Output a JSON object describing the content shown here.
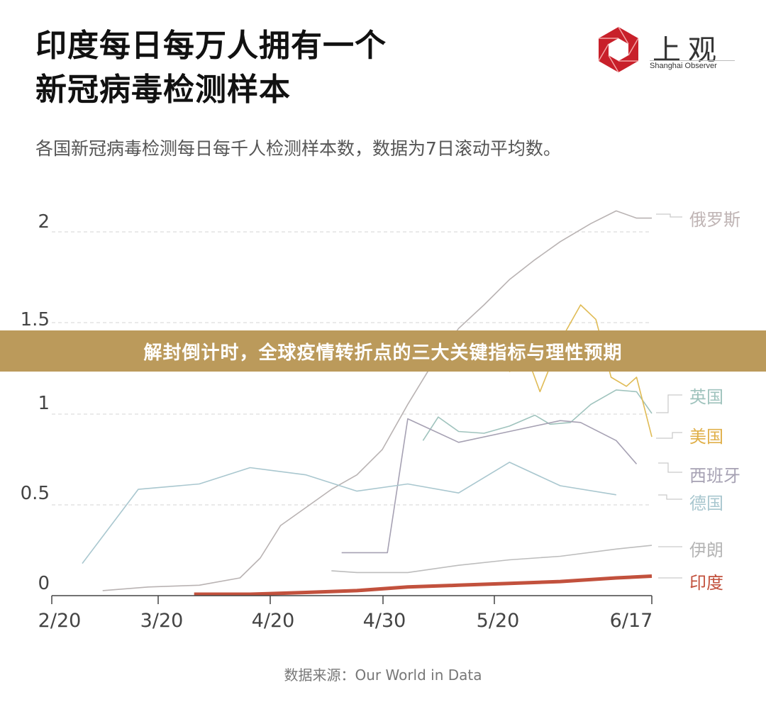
{
  "header": {
    "title_line1": "印度每日每万人拥有一个",
    "title_line2": "新冠病毒检测样本",
    "subtitle": "各国新冠病毒检测每日每千人检测样本数，数据为7日滚动平均数。"
  },
  "logo": {
    "icon": "hexagon-shutter-icon",
    "name_cn": "上观",
    "name_en": "Shanghai Observer",
    "color": "#c8202a"
  },
  "banner": {
    "text": "解封倒计时，全球疫情转折点的三大关键指标与理性预期",
    "color": "#bb9a5b"
  },
  "source": "数据来源：Our World in Data",
  "chart_data": {
    "type": "line",
    "title": "印度每日每万人拥有一个新冠病毒检测样本",
    "subtitle": "各国新冠病毒检测每日每千人检测样本数，数据为7日滚动平均数。",
    "xlabel": "",
    "ylabel": "",
    "ylim": [
      0,
      2.2
    ],
    "yticks": [
      "0",
      "0.5",
      "1",
      "1.5",
      "2"
    ],
    "xticks": [
      "2/20",
      "3/20",
      "4/20",
      "4/30",
      "5/20",
      "6/17"
    ],
    "grid": "horizontal dashed",
    "legend_position": "right, direct labels",
    "series": [
      {
        "name": "俄罗斯",
        "color": "#b9b3b3",
        "x": [
          "3/1",
          "3/10",
          "3/20",
          "3/28",
          "4/1",
          "4/5",
          "4/10",
          "4/15",
          "4/20",
          "4/25",
          "4/30",
          "5/5",
          "5/10",
          "5/15",
          "5/20",
          "5/25",
          "5/30",
          "6/5",
          "6/10",
          "6/14",
          "6/17"
        ],
        "values": [
          0.02,
          0.04,
          0.05,
          0.09,
          0.2,
          0.38,
          0.48,
          0.58,
          0.66,
          0.8,
          1.05,
          1.28,
          1.47,
          1.6,
          1.74,
          1.85,
          1.95,
          2.05,
          2.12,
          2.08,
          2.08
        ]
      },
      {
        "name": "英国",
        "color": "#9fc3bd",
        "x": [
          "5/3",
          "5/6",
          "5/10",
          "5/15",
          "5/20",
          "5/25",
          "5/28",
          "6/1",
          "6/5",
          "6/10",
          "6/14",
          "6/17"
        ],
        "values": [
          0.85,
          0.98,
          0.9,
          0.89,
          0.93,
          0.99,
          0.94,
          0.95,
          1.05,
          1.13,
          1.12,
          1.0
        ]
      },
      {
        "name": "美国",
        "color": "#e0bb55",
        "x": [
          "5/20",
          "5/23",
          "5/26",
          "5/30",
          "6/3",
          "6/6",
          "6/9",
          "6/12",
          "6/14",
          "6/17"
        ],
        "values": [
          1.23,
          1.35,
          1.12,
          1.4,
          1.6,
          1.52,
          1.2,
          1.15,
          1.2,
          0.87
        ]
      },
      {
        "name": "西班牙",
        "color": "#a6a1b3",
        "x": [
          "4/17",
          "4/26",
          "4/30",
          "5/10",
          "5/20",
          "5/30",
          "6/3",
          "6/10",
          "6/14"
        ],
        "values": [
          0.23,
          0.23,
          0.97,
          0.84,
          0.9,
          0.96,
          0.95,
          0.85,
          0.72
        ]
      },
      {
        "name": "德国",
        "color": "#a9c7cf",
        "x": [
          "2/26",
          "3/8",
          "3/20",
          "3/30",
          "4/10",
          "4/20",
          "4/30",
          "5/10",
          "5/20",
          "5/30",
          "6/10"
        ],
        "values": [
          0.17,
          0.58,
          0.61,
          0.7,
          0.66,
          0.57,
          0.61,
          0.56,
          0.73,
          0.6,
          0.55
        ]
      },
      {
        "name": "伊朗",
        "color": "#bdbdbd",
        "x": [
          "4/15",
          "4/20",
          "4/30",
          "5/10",
          "5/20",
          "5/30",
          "6/10",
          "6/17"
        ],
        "values": [
          0.13,
          0.12,
          0.12,
          0.16,
          0.19,
          0.21,
          0.25,
          0.27
        ]
      },
      {
        "name": "印度",
        "color": "#c2513d",
        "x": [
          "3/19",
          "3/30",
          "4/10",
          "4/20",
          "4/30",
          "5/10",
          "5/20",
          "5/30",
          "6/10",
          "6/17"
        ],
        "values": [
          0.0,
          0.0,
          0.01,
          0.02,
          0.04,
          0.05,
          0.06,
          0.07,
          0.09,
          0.1
        ]
      }
    ]
  }
}
